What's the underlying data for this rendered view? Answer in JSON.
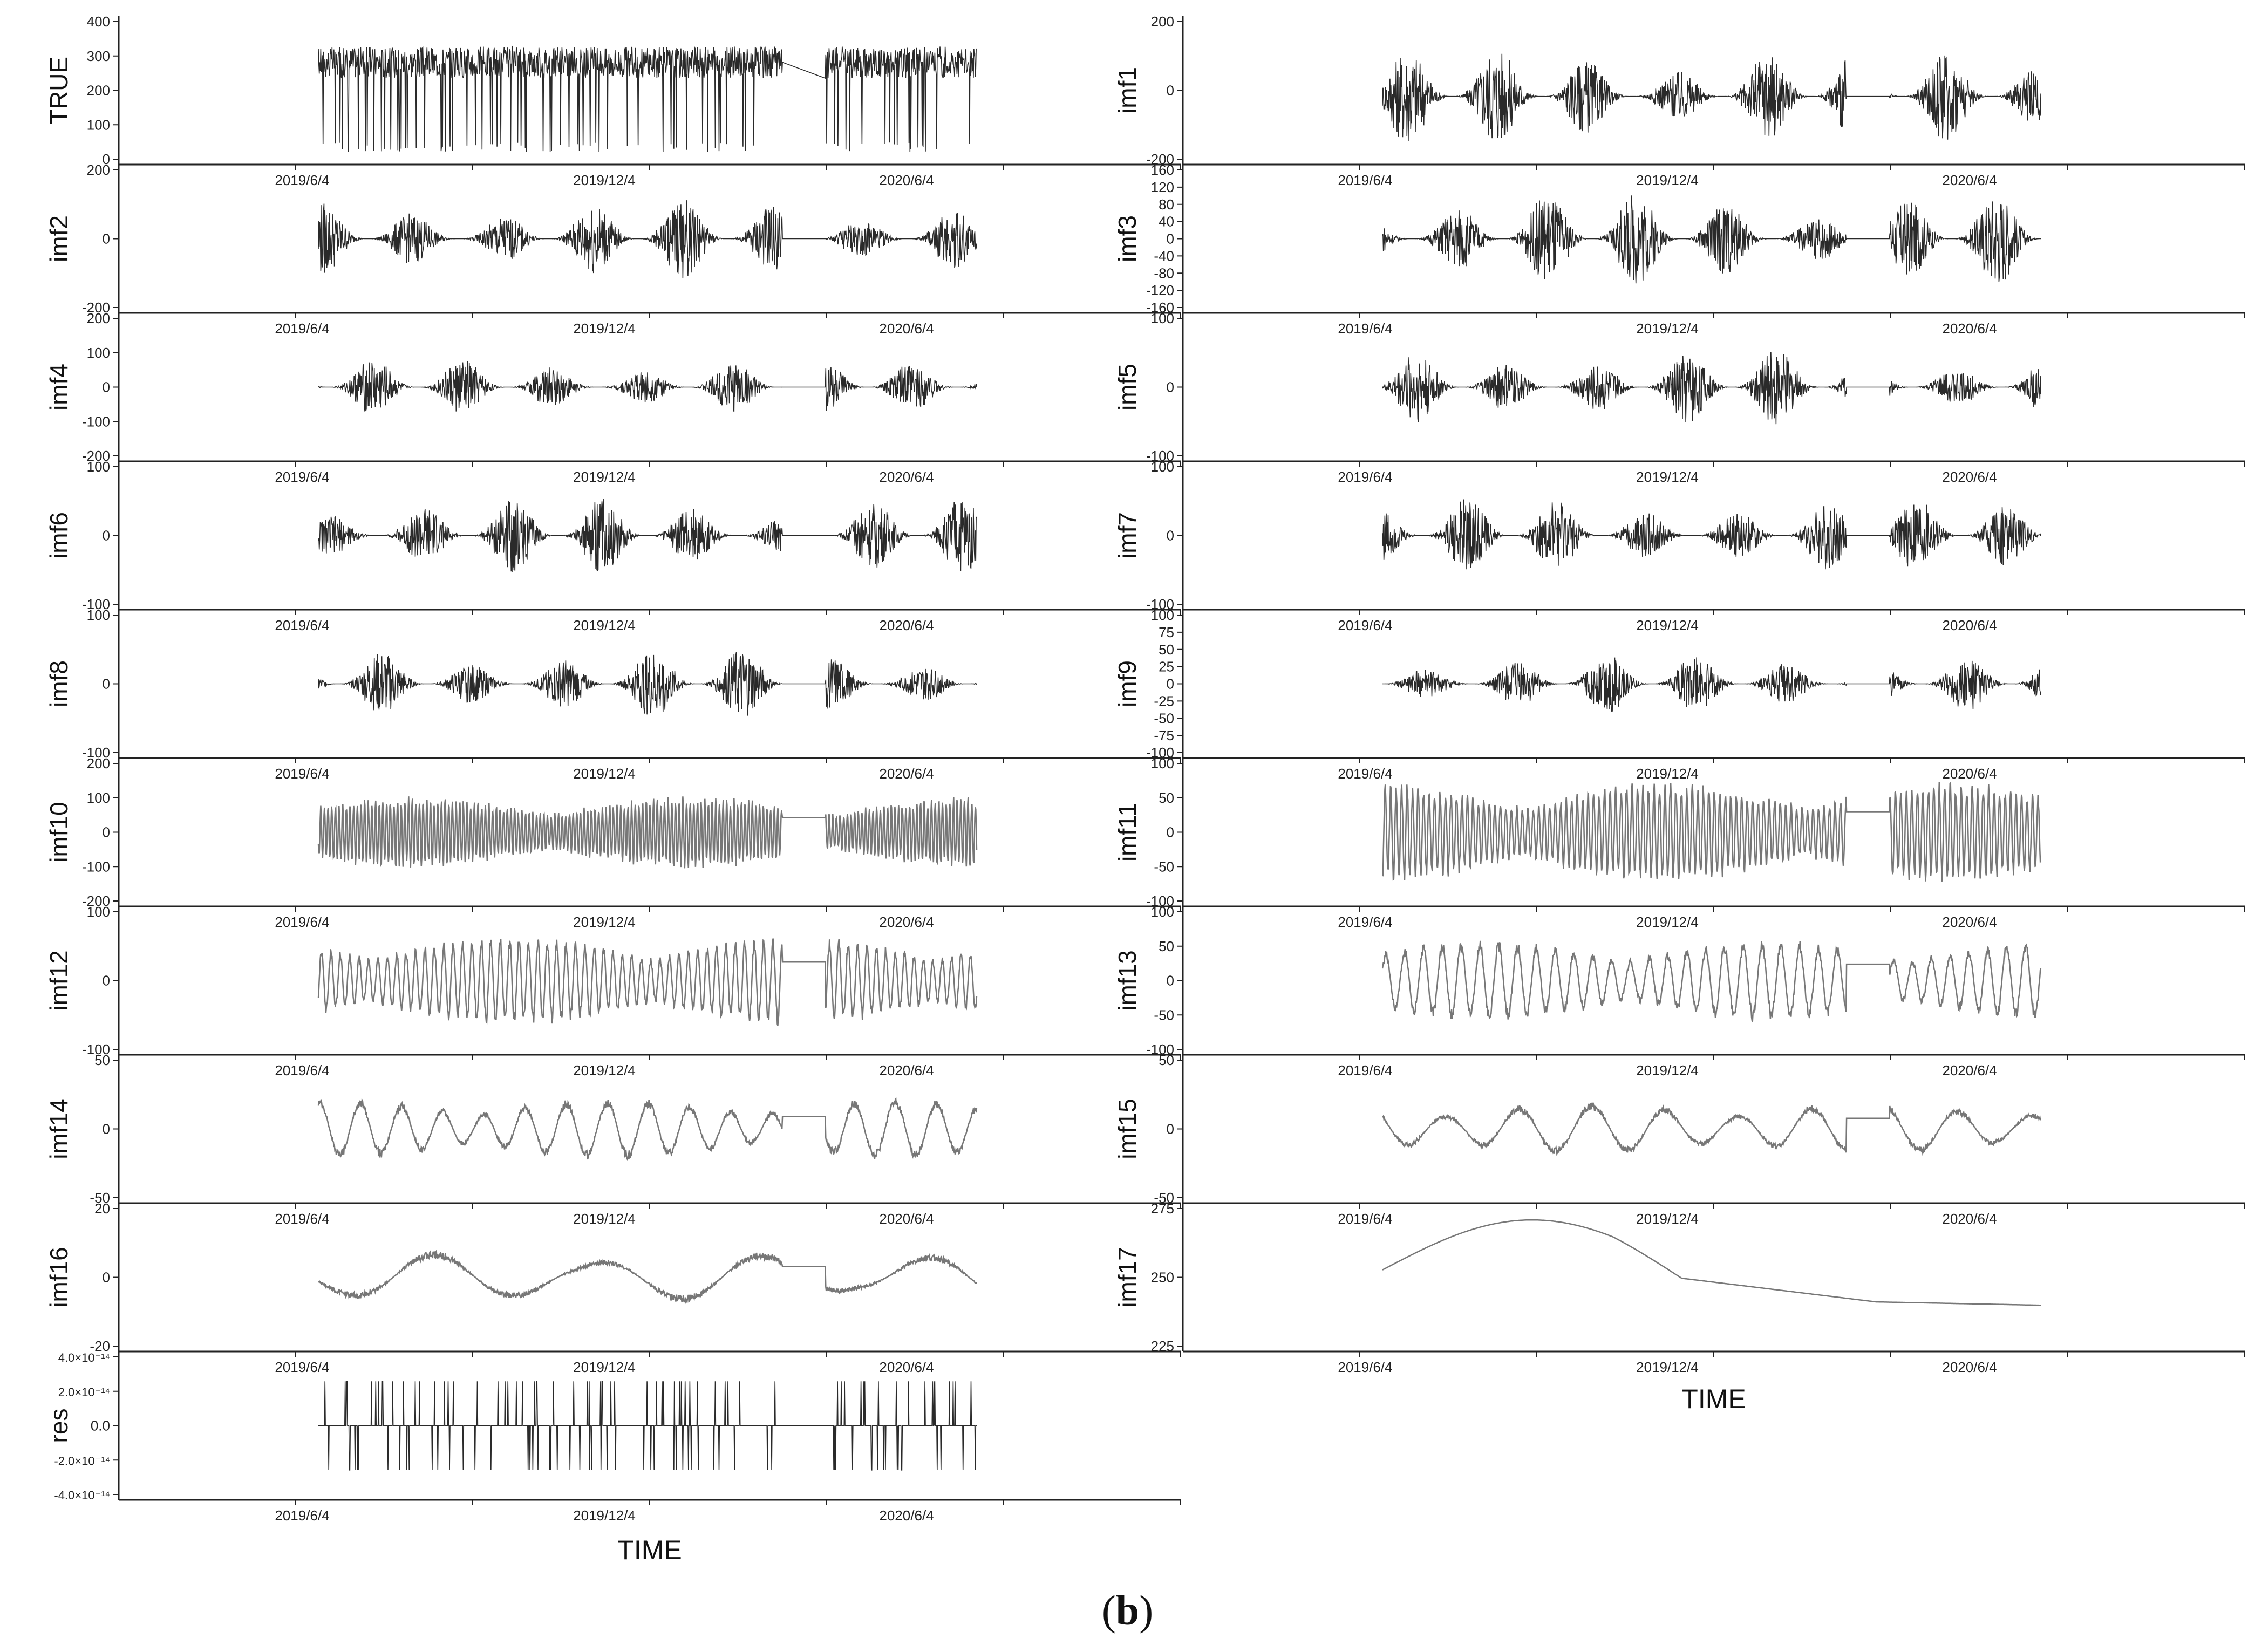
{
  "figure": {
    "caption_open": "(",
    "caption_letter": "b",
    "caption_close": ")",
    "x_axis_title": "TIME",
    "x_tick_labels": [
      "2019/6/4",
      "2019/12/4",
      "2020/6/4"
    ]
  },
  "chart_data": [
    {
      "type": "line",
      "ylabel": "TRUE",
      "yticks": [
        "400",
        "300",
        "200",
        "100",
        "0"
      ],
      "ylim": [
        -15,
        400
      ],
      "kind": "spiky",
      "base": 280,
      "amp": 70,
      "dense": 1.0
    },
    {
      "type": "line",
      "ylabel": "imf1",
      "yticks": [
        "200",
        "0",
        "-200"
      ],
      "ylim": [
        -250,
        300
      ],
      "kind": "burst",
      "base": 0,
      "amp": 150,
      "dense": 1.0
    },
    {
      "type": "line",
      "ylabel": "imf2",
      "yticks": [
        "200",
        "0",
        "-200"
      ],
      "ylim": [
        -230,
        230
      ],
      "kind": "burst",
      "base": 0,
      "amp": 140,
      "dense": 0.7
    },
    {
      "type": "line",
      "ylabel": "imf3",
      "yticks": [
        "160",
        "120",
        "80",
        "40",
        "0",
        "-40",
        "-80",
        "-120",
        "-160"
      ],
      "ylim": [
        -180,
        180
      ],
      "kind": "burst",
      "base": 0,
      "amp": 130,
      "dense": 0.7
    },
    {
      "type": "line",
      "ylabel": "imf4",
      "yticks": [
        "200",
        "100",
        "0",
        "-100",
        "-200"
      ],
      "ylim": [
        -200,
        200
      ],
      "kind": "burst",
      "base": 0,
      "amp": 90,
      "dense": 0.7
    },
    {
      "type": "line",
      "ylabel": "imf5",
      "yticks": [
        "100",
        "0",
        "-100"
      ],
      "ylim": [
        -150,
        150
      ],
      "kind": "burst",
      "base": 0,
      "amp": 90,
      "dense": 0.7
    },
    {
      "type": "line",
      "ylabel": "imf6",
      "yticks": [
        "100",
        "0",
        "-100"
      ],
      "ylim": [
        -130,
        130
      ],
      "kind": "burst",
      "base": 0,
      "amp": 90,
      "dense": 0.6
    },
    {
      "type": "line",
      "ylabel": "imf7",
      "yticks": [
        "100",
        "0",
        "-100"
      ],
      "ylim": [
        -130,
        130
      ],
      "kind": "burst",
      "base": 0,
      "amp": 95,
      "dense": 0.55
    },
    {
      "type": "line",
      "ylabel": "imf8",
      "yticks": [
        "100",
        "0",
        "-100"
      ],
      "ylim": [
        -130,
        130
      ],
      "kind": "burst",
      "base": 0,
      "amp": 100,
      "dense": 0.5
    },
    {
      "type": "line",
      "ylabel": "imf9",
      "yticks": [
        "100",
        "75",
        "50",
        "25",
        "0",
        "-25",
        "-50",
        "-75",
        "-100"
      ],
      "ylim": [
        -110,
        110
      ],
      "kind": "burst",
      "base": 0,
      "amp": 80,
      "dense": 0.45
    },
    {
      "type": "line",
      "ylabel": "imf10",
      "yticks": [
        "200",
        "100",
        "0",
        "-100",
        "-200"
      ],
      "ylim": [
        -200,
        200
      ],
      "kind": "wave",
      "base": 0,
      "amp": 110,
      "freq": 180
    },
    {
      "type": "line",
      "ylabel": "imf11",
      "yticks": [
        "100",
        "50",
        "0",
        "-50",
        "-100"
      ],
      "ylim": [
        -130,
        130
      ],
      "kind": "wave",
      "base": 0,
      "amp": 100,
      "freq": 120
    },
    {
      "type": "line",
      "ylabel": "imf12",
      "yticks": [
        "100",
        "0",
        "-100"
      ],
      "ylim": [
        -130,
        130
      ],
      "kind": "wave",
      "base": 0,
      "amp": 90,
      "freq": 70
    },
    {
      "type": "line",
      "ylabel": "imf13",
      "yticks": [
        "100",
        "50",
        "0",
        "-50",
        "-100"
      ],
      "ylim": [
        -130,
        130
      ],
      "kind": "wave",
      "base": 0,
      "amp": 80,
      "freq": 35
    },
    {
      "type": "line",
      "ylabel": "imf14",
      "yticks": [
        "50",
        "0",
        "-50"
      ],
      "ylim": [
        -75,
        75
      ],
      "kind": "wave",
      "base": 0,
      "amp": 35,
      "freq": 16
    },
    {
      "type": "line",
      "ylabel": "imf15",
      "yticks": [
        "50",
        "0",
        "-50"
      ],
      "ylim": [
        -75,
        75
      ],
      "kind": "wave",
      "base": 0,
      "amp": 30,
      "freq": 9
    },
    {
      "type": "line",
      "ylabel": "imf16",
      "yticks": [
        "20",
        "0",
        "-20"
      ],
      "ylim": [
        -30,
        30
      ],
      "kind": "wave",
      "base": 0,
      "amp": 12,
      "freq": 4
    },
    {
      "type": "line",
      "ylabel": "imf17",
      "yticks": [
        "275",
        "250",
        "225"
      ],
      "ylim": [
        205,
        277
      ],
      "kind": "trend",
      "base": 245,
      "amp": 30
    },
    {
      "type": "line",
      "ylabel": "res",
      "yticks": [
        "4.0×10⁻¹⁴",
        "2.0×10⁻¹⁴",
        "0.0",
        "-2.0×10⁻¹⁴",
        "-4.0×10⁻¹⁴"
      ],
      "ylim": [
        -4.2,
        4.2
      ],
      "kind": "res",
      "base": 0,
      "amp": 2.8
    }
  ]
}
